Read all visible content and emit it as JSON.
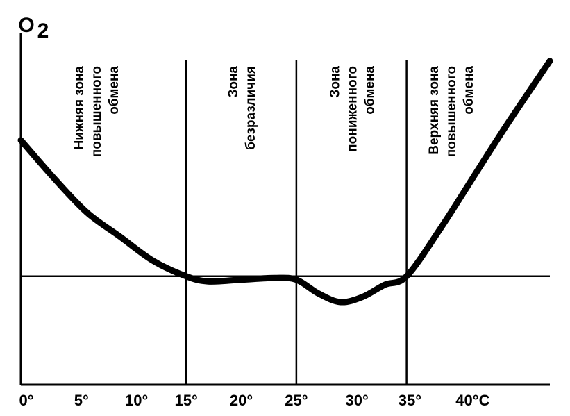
{
  "chart_data": {
    "type": "line",
    "ylabel": "O",
    "ylabel_sub": "2",
    "xlim": [
      0,
      48
    ],
    "ylim": [
      0,
      10
    ],
    "baseline": 3.15,
    "boundaries": [
      15,
      25,
      35
    ],
    "x_ticks": [
      {
        "value": 0,
        "label": "0°"
      },
      {
        "value": 5.5,
        "label": "5°"
      },
      {
        "value": 10.5,
        "label": "10°"
      },
      {
        "value": 15,
        "label": "15°"
      },
      {
        "value": 20,
        "label": "20°"
      },
      {
        "value": 25,
        "label": "25°"
      },
      {
        "value": 30.5,
        "label": "30°"
      },
      {
        "value": 35.3,
        "label": "35°"
      },
      {
        "value": 41,
        "label": "40°C"
      }
    ],
    "zones": [
      {
        "x": 6.8,
        "lines": [
          "Нижняя зона",
          "повышенного",
          "обмена"
        ]
      },
      {
        "x": 20,
        "lines": [
          "Зона",
          "безразличия"
        ]
      },
      {
        "x": 30,
        "lines": [
          "Зона",
          "пониженного",
          "обмена"
        ]
      },
      {
        "x": 39,
        "lines": [
          "Верхняя зона",
          "повышенного",
          "обмена"
        ]
      }
    ],
    "series": [
      {
        "x": [
          0,
          3,
          6,
          9,
          12,
          15,
          17,
          20,
          23,
          25,
          27,
          29,
          31,
          33,
          35,
          38,
          41,
          44,
          48
        ],
        "y": [
          7.1,
          6.0,
          5.0,
          4.3,
          3.6,
          3.15,
          3.0,
          3.05,
          3.1,
          3.05,
          2.65,
          2.4,
          2.55,
          2.9,
          3.15,
          4.5,
          6.0,
          7.5,
          9.4
        ]
      }
    ]
  }
}
